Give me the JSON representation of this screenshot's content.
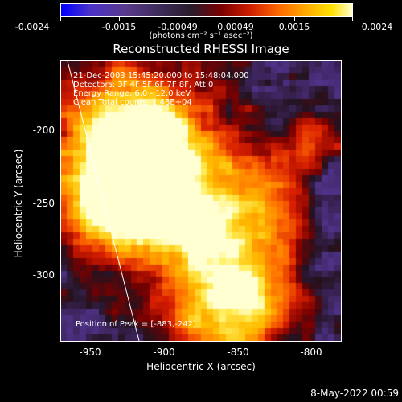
{
  "colorbar": {
    "labels": [
      "-0.0024",
      "-0.0015",
      "-0.00049",
      "0.00049",
      "0.0015",
      "0.0024"
    ],
    "units": "(photons cm⁻² s⁻¹ asec⁻²)"
  },
  "title": "Reconstructed RHESSI Image",
  "info": {
    "line1": "21-Dec-2003 15:45:20.000 to 15:48:04.000",
    "line2": "Detectors: 3F 4F 5F 6F 7F 8F, Att 0",
    "line3": "Energy Range: 6.0 - 12.0 keV",
    "line4": "Clean    Total counts: 1.48E+04",
    "peak": "Position of Peak = [-883,-242]"
  },
  "xaxis": {
    "label": "Heliocentric X (arcsec)",
    "ticks": [
      "-950",
      "-900",
      "-850",
      "-800"
    ]
  },
  "yaxis": {
    "label": "Heliocentric Y (arcsec)",
    "ticks": [
      "-200",
      "-250",
      "-300"
    ]
  },
  "timestamp": "8-May-2022 00:59"
}
